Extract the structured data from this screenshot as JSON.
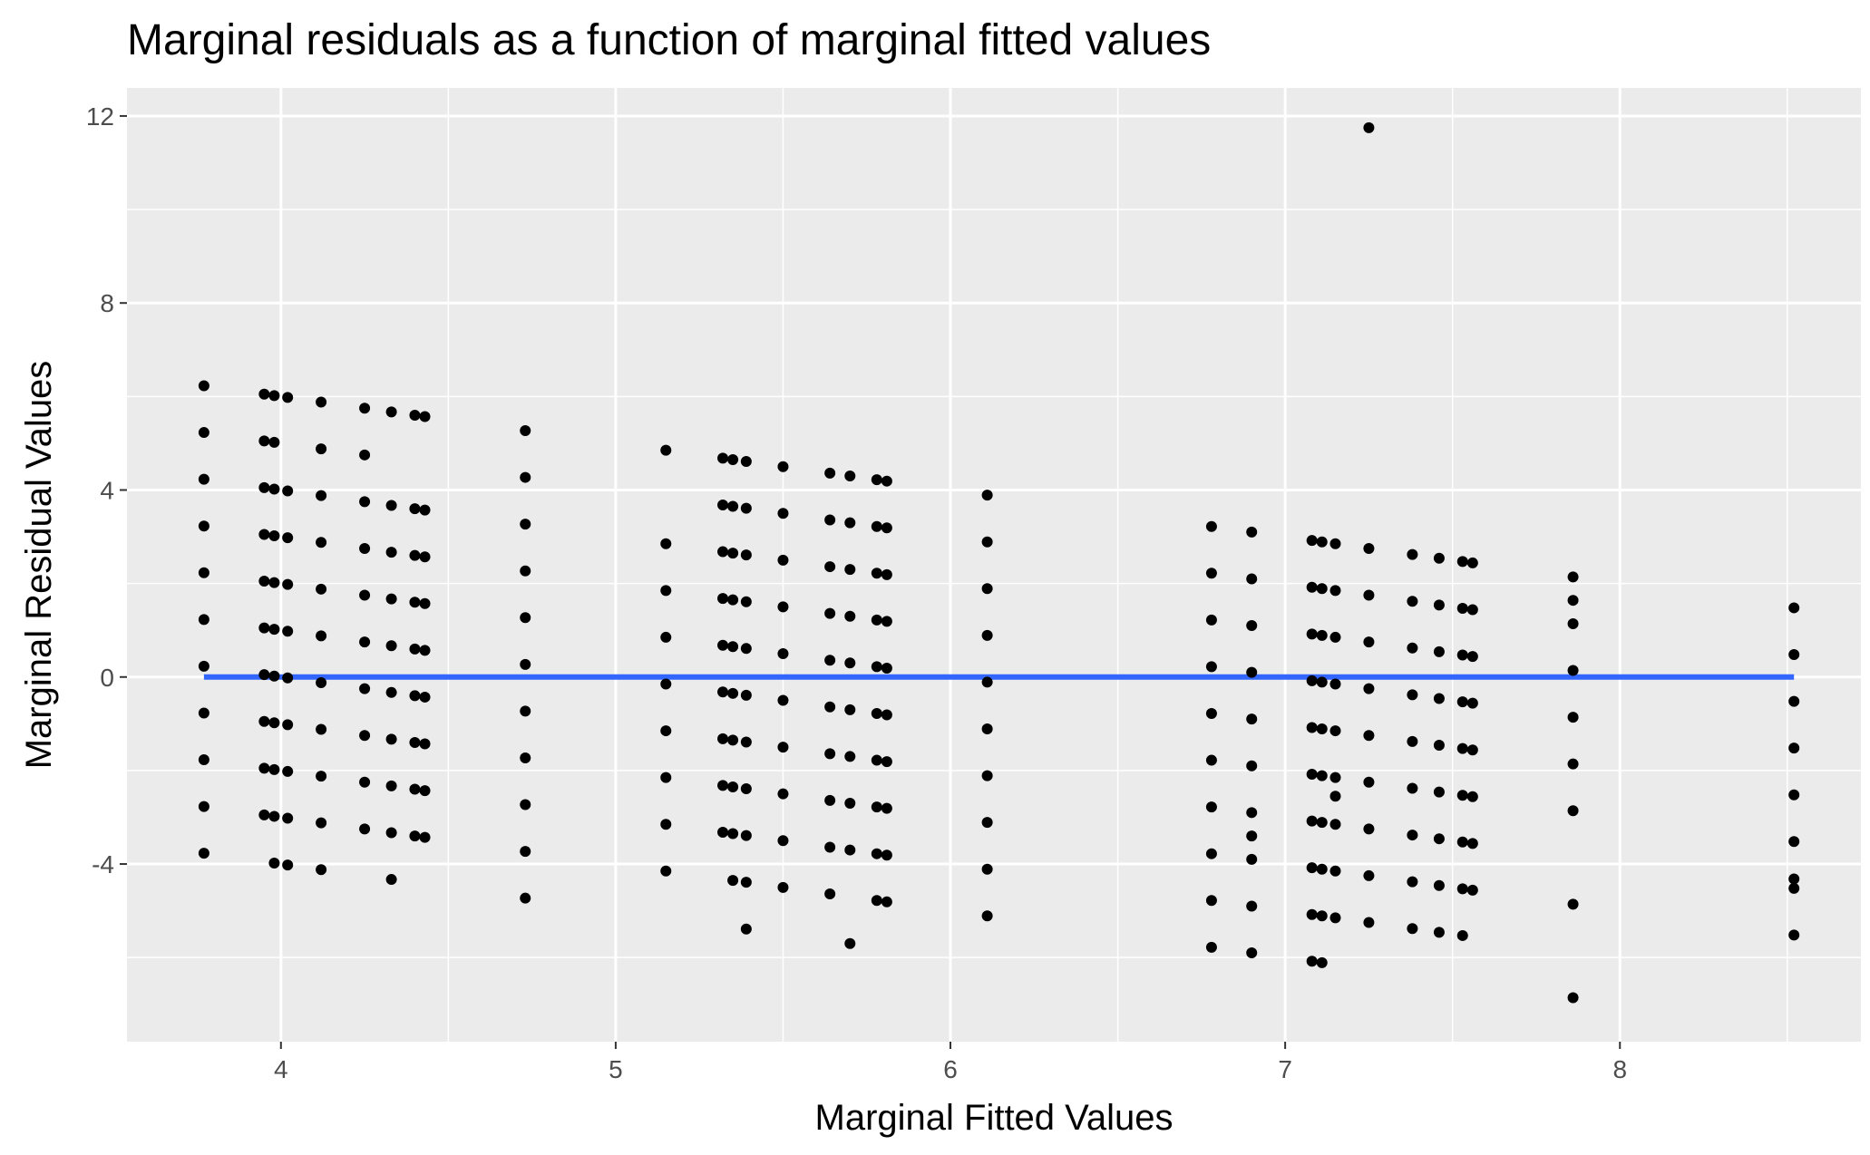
{
  "chart_data": {
    "type": "scatter",
    "title": "Marginal residuals as a function of marginal fitted values",
    "xlabel": "Marginal Fitted Values",
    "ylabel": "Marginal Residual Values",
    "xlim": [
      3.54,
      8.72
    ],
    "ylim": [
      -7.8,
      12.6
    ],
    "x_ticks": [
      4,
      5,
      6,
      7,
      8
    ],
    "y_ticks": [
      -4,
      0,
      4,
      8,
      12
    ],
    "x_tick_labels": [
      "4",
      "5",
      "6",
      "7",
      "8"
    ],
    "y_tick_labels": [
      "-4",
      "0",
      "4",
      "8",
      "12"
    ],
    "grid": true,
    "panel_background": "#EBEBEB",
    "grid_color": "#FFFFFF",
    "point_color": "#000000",
    "fit_line": {
      "color": "#3366FF",
      "x": [
        3.77,
        8.52
      ],
      "y": [
        0,
        0
      ]
    },
    "point_columns": [
      {
        "x": 3.77,
        "y": [
          6.23,
          5.23,
          4.23,
          3.23,
          2.23,
          1.23,
          0.23,
          -0.77,
          -1.77,
          -2.77,
          -3.77
        ]
      },
      {
        "x": 3.95,
        "y": [
          6.05,
          5.05,
          4.05,
          3.05,
          2.05,
          1.05,
          0.05,
          -0.95,
          -1.95,
          -2.95
        ]
      },
      {
        "x": 3.98,
        "y": [
          6.02,
          5.02,
          4.02,
          3.02,
          2.02,
          1.02,
          0.02,
          -0.98,
          -1.98,
          -2.98,
          -3.98
        ]
      },
      {
        "x": 4.02,
        "y": [
          5.98,
          3.98,
          2.98,
          1.98,
          0.98,
          -0.02,
          -1.02,
          -2.02,
          -3.02,
          -4.02
        ]
      },
      {
        "x": 4.12,
        "y": [
          5.88,
          4.88,
          3.88,
          2.88,
          1.88,
          0.88,
          -0.12,
          -1.12,
          -2.12,
          -3.12,
          -4.12
        ]
      },
      {
        "x": 4.25,
        "y": [
          5.75,
          4.75,
          3.75,
          2.75,
          1.75,
          0.75,
          -0.25,
          -1.25,
          -2.25,
          -3.25
        ]
      },
      {
        "x": 4.33,
        "y": [
          5.67,
          3.67,
          2.67,
          1.67,
          0.67,
          -0.33,
          -1.33,
          -2.33,
          -3.33,
          -4.33
        ]
      },
      {
        "x": 4.4,
        "y": [
          5.6,
          3.6,
          2.6,
          1.6,
          0.6,
          -0.4,
          -1.4,
          -2.4,
          -3.4
        ]
      },
      {
        "x": 4.43,
        "y": [
          5.57,
          3.57,
          2.57,
          1.57,
          0.57,
          -0.43,
          -1.43,
          -2.43,
          -3.43
        ]
      },
      {
        "x": 4.73,
        "y": [
          5.27,
          4.27,
          3.27,
          2.27,
          1.27,
          0.27,
          -0.73,
          -1.73,
          -2.73,
          -3.73,
          -4.73
        ]
      },
      {
        "x": 5.15,
        "y": [
          4.85,
          2.85,
          1.85,
          0.85,
          -0.15,
          -1.15,
          -2.15,
          -3.15,
          -4.15
        ]
      },
      {
        "x": 5.32,
        "y": [
          4.68,
          3.68,
          2.68,
          1.68,
          0.68,
          -0.32,
          -1.32,
          -2.32,
          -3.32
        ]
      },
      {
        "x": 5.35,
        "y": [
          4.65,
          3.65,
          2.65,
          1.65,
          0.65,
          -0.35,
          -1.35,
          -2.35,
          -3.35,
          -4.35
        ]
      },
      {
        "x": 5.39,
        "y": [
          4.61,
          3.61,
          2.61,
          1.61,
          0.61,
          -0.39,
          -1.39,
          -2.39,
          -3.39,
          -4.39,
          -5.39
        ]
      },
      {
        "x": 5.5,
        "y": [
          4.5,
          3.5,
          2.5,
          1.5,
          0.5,
          -0.5,
          -1.5,
          -2.5,
          -3.5,
          -4.5
        ]
      },
      {
        "x": 5.64,
        "y": [
          4.36,
          3.36,
          2.36,
          1.36,
          0.36,
          -0.64,
          -1.64,
          -2.64,
          -3.64,
          -4.64
        ]
      },
      {
        "x": 5.7,
        "y": [
          4.3,
          3.3,
          2.3,
          1.3,
          0.3,
          -0.7,
          -1.7,
          -2.7,
          -3.7,
          -5.7
        ]
      },
      {
        "x": 5.78,
        "y": [
          4.22,
          3.22,
          2.22,
          1.22,
          0.22,
          -0.78,
          -1.78,
          -2.78,
          -3.78,
          -4.78
        ]
      },
      {
        "x": 5.81,
        "y": [
          4.19,
          3.19,
          2.19,
          1.19,
          0.19,
          -0.81,
          -1.81,
          -2.81,
          -3.81,
          -4.81
        ]
      },
      {
        "x": 6.11,
        "y": [
          3.89,
          2.89,
          1.89,
          0.89,
          -0.11,
          -1.11,
          -2.11,
          -3.11,
          -4.11,
          -5.11
        ]
      },
      {
        "x": 6.78,
        "y": [
          3.22,
          2.22,
          1.22,
          0.22,
          -0.78,
          -1.78,
          -2.78,
          -3.78,
          -4.78,
          -5.78
        ]
      },
      {
        "x": 6.9,
        "y": [
          3.1,
          2.1,
          1.1,
          0.1,
          -0.9,
          -1.9,
          -2.9,
          -3.4,
          -3.9,
          -4.9,
          -5.9
        ]
      },
      {
        "x": 7.08,
        "y": [
          2.92,
          1.92,
          0.92,
          -0.08,
          -1.08,
          -2.08,
          -3.08,
          -4.08,
          -5.08,
          -6.08
        ]
      },
      {
        "x": 7.11,
        "y": [
          2.89,
          1.89,
          0.89,
          -0.11,
          -1.11,
          -2.11,
          -3.11,
          -4.11,
          -5.11,
          -6.11
        ]
      },
      {
        "x": 7.15,
        "y": [
          2.85,
          1.85,
          0.85,
          -0.15,
          -1.15,
          -2.15,
          -2.55,
          -3.15,
          -4.15,
          -5.15
        ]
      },
      {
        "x": 7.25,
        "y": [
          11.75,
          2.75,
          1.75,
          0.75,
          -0.25,
          -1.25,
          -2.25,
          -3.25,
          -4.25,
          -5.25
        ]
      },
      {
        "x": 7.38,
        "y": [
          2.62,
          1.62,
          0.62,
          -0.38,
          -1.38,
          -2.38,
          -3.38,
          -4.38,
          -5.38
        ]
      },
      {
        "x": 7.46,
        "y": [
          2.54,
          1.54,
          0.54,
          -0.46,
          -1.46,
          -2.46,
          -3.46,
          -4.46,
          -5.46
        ]
      },
      {
        "x": 7.53,
        "y": [
          2.47,
          1.47,
          0.47,
          -0.53,
          -1.53,
          -2.53,
          -3.53,
          -4.53,
          -5.53
        ]
      },
      {
        "x": 7.56,
        "y": [
          2.44,
          1.44,
          0.44,
          -0.56,
          -1.56,
          -2.56,
          -3.56,
          -4.56
        ]
      },
      {
        "x": 7.86,
        "y": [
          2.14,
          1.64,
          1.14,
          0.14,
          -0.86,
          -1.86,
          -2.86,
          -4.86,
          -6.86
        ]
      },
      {
        "x": 8.52,
        "y": [
          1.48,
          0.48,
          -0.52,
          -1.52,
          -2.52,
          -3.52,
          -4.32,
          -4.52,
          -5.52
        ]
      }
    ]
  }
}
